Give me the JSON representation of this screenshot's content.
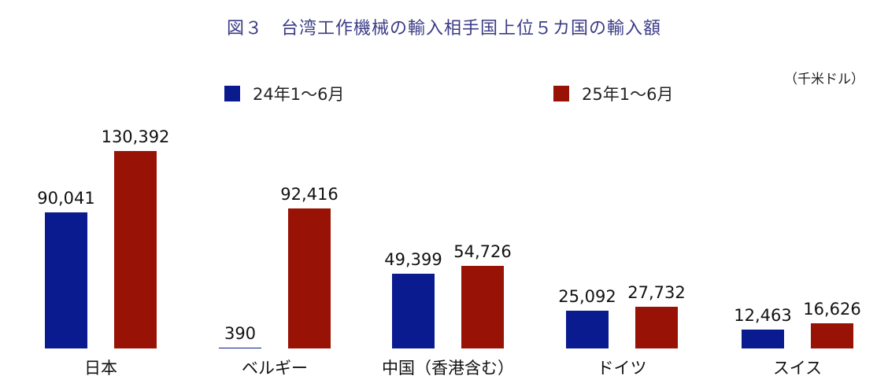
{
  "title": "図３　台湾工作機械の輸入相手国上位５カ国の輸入額",
  "unit": "（千米ドル）",
  "legend": [
    {
      "label": "24年1〜6月",
      "color": "#0a1a8f"
    },
    {
      "label": "25年1〜6月",
      "color": "#981205"
    }
  ],
  "groups": [
    {
      "category": "日本",
      "v24": "90,041",
      "v25": "130,392"
    },
    {
      "category": "ベルギー",
      "v24": "390",
      "v25": "92,416"
    },
    {
      "category": "中国（香港含む）",
      "v24": "49,399",
      "v25": "54,726"
    },
    {
      "category": "ドイツ",
      "v24": "25,092",
      "v25": "27,732"
    },
    {
      "category": "スイス",
      "v24": "12,463",
      "v25": "16,626"
    }
  ],
  "chart_data": {
    "type": "bar",
    "title": "図３　台湾工作機械の輸入相手国上位５カ国の輸入額",
    "unit": "千米ドル",
    "categories": [
      "日本",
      "ベルギー",
      "中国（香港含む）",
      "ドイツ",
      "スイス"
    ],
    "series": [
      {
        "name": "24年1〜6月",
        "color": "#0a1a8f",
        "values": [
          90041,
          390,
          49399,
          25092,
          12463
        ]
      },
      {
        "name": "25年1〜6月",
        "color": "#981205",
        "values": [
          130392,
          92416,
          54726,
          27732,
          16626
        ]
      }
    ],
    "xlabel": "",
    "ylabel": "",
    "grid": false,
    "legend_position": "top",
    "data_labels": true
  }
}
